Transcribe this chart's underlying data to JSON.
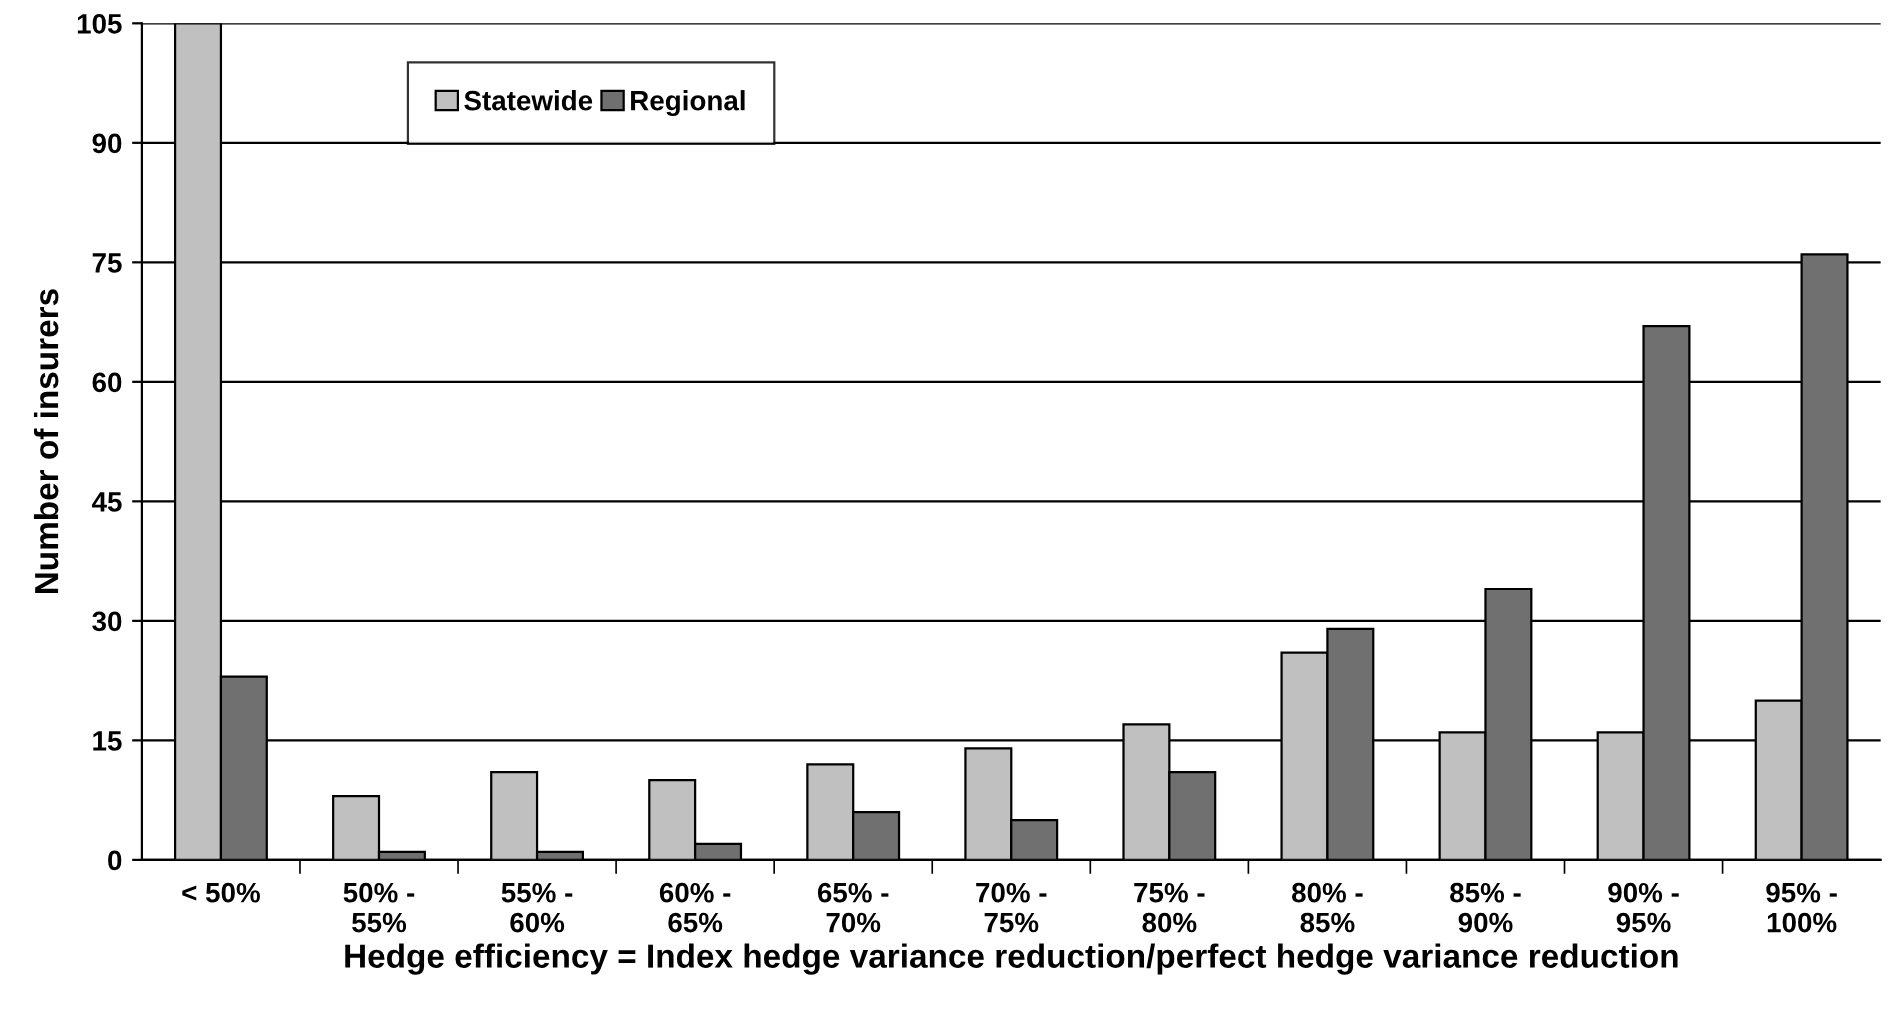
{
  "chart_data": {
    "type": "bar",
    "xlabel": "Hedge efficiency = Index hedge variance reduction/perfect hedge variance reduction",
    "ylabel": "Number of insurers",
    "categories": [
      "< 50%",
      "50% -\n55%",
      "55% -\n60%",
      "60% -\n65%",
      "65% -\n70%",
      "70% -\n75%",
      "75% -\n80%",
      "80% -\n85%",
      "85% -\n90%",
      "90% -\n95%",
      "95% -\n100%"
    ],
    "series": [
      {
        "name": "Statewide",
        "color": "#c0c0c0",
        "values": [
          105,
          8,
          11,
          10,
          12,
          14,
          17,
          26,
          16,
          16,
          20
        ]
      },
      {
        "name": "Regional",
        "color": "#707070",
        "values": [
          23,
          1,
          1,
          2,
          6,
          5,
          11,
          29,
          34,
          67,
          76
        ]
      }
    ],
    "ylim": [
      0,
      105
    ],
    "yticks": [
      0,
      15,
      30,
      45,
      60,
      75,
      90,
      105
    ],
    "grid": "y",
    "legend": "top left"
  }
}
